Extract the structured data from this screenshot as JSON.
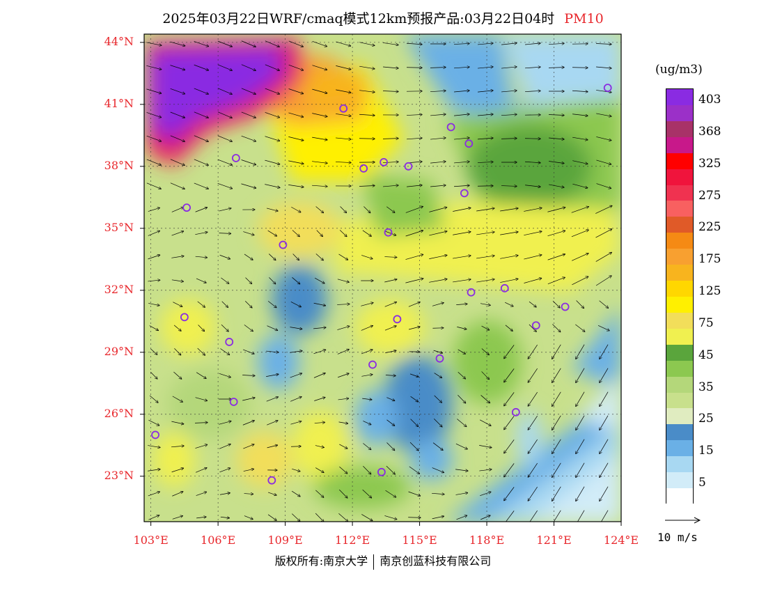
{
  "title": {
    "text": "2025年03月22日WRF/cmaq模式12km预报产品:03月22日04时",
    "pollutant": "PM10"
  },
  "map": {
    "lon_range": [
      102.7,
      124.0
    ],
    "lat_range": [
      20.8,
      44.4
    ],
    "lat_ticks": [
      {
        "value": 44,
        "label": "44°N"
      },
      {
        "value": 41,
        "label": "41°N"
      },
      {
        "value": 38,
        "label": "38°N"
      },
      {
        "value": 35,
        "label": "35°N"
      },
      {
        "value": 32,
        "label": "32°N"
      },
      {
        "value": 29,
        "label": "29°N"
      },
      {
        "value": 26,
        "label": "26°N"
      },
      {
        "value": 23,
        "label": "23°N"
      }
    ],
    "lon_ticks": [
      {
        "value": 103,
        "label": "103°E"
      },
      {
        "value": 106,
        "label": "106°E"
      },
      {
        "value": 109,
        "label": "109°E"
      },
      {
        "value": 112,
        "label": "112°E"
      },
      {
        "value": 115,
        "label": "115°E"
      },
      {
        "value": 118,
        "label": "118°E"
      },
      {
        "value": 121,
        "label": "121°E"
      },
      {
        "value": 124,
        "label": "124°E"
      }
    ],
    "city_marker_color": "#8a2be2",
    "cities": [
      {
        "lon": 103.2,
        "lat": 25.0
      },
      {
        "lon": 104.6,
        "lat": 36.0
      },
      {
        "lon": 104.5,
        "lat": 30.7
      },
      {
        "lon": 106.5,
        "lat": 29.5
      },
      {
        "lon": 106.7,
        "lat": 26.6
      },
      {
        "lon": 106.8,
        "lat": 38.4
      },
      {
        "lon": 108.4,
        "lat": 22.8
      },
      {
        "lon": 108.9,
        "lat": 34.2
      },
      {
        "lon": 111.6,
        "lat": 40.8
      },
      {
        "lon": 112.5,
        "lat": 37.9
      },
      {
        "lon": 113.4,
        "lat": 38.2
      },
      {
        "lon": 112.9,
        "lat": 28.4
      },
      {
        "lon": 113.6,
        "lat": 34.8
      },
      {
        "lon": 114.0,
        "lat": 30.6
      },
      {
        "lon": 113.3,
        "lat": 23.2
      },
      {
        "lon": 114.5,
        "lat": 38.0
      },
      {
        "lon": 115.9,
        "lat": 28.7
      },
      {
        "lon": 116.4,
        "lat": 39.9
      },
      {
        "lon": 117.2,
        "lat": 39.1
      },
      {
        "lon": 117.0,
        "lat": 36.7
      },
      {
        "lon": 117.3,
        "lat": 31.9
      },
      {
        "lon": 118.8,
        "lat": 32.1
      },
      {
        "lon": 120.2,
        "lat": 30.3
      },
      {
        "lon": 121.5,
        "lat": 31.2
      },
      {
        "lon": 119.3,
        "lat": 26.1
      },
      {
        "lon": 123.4,
        "lat": 41.8
      }
    ]
  },
  "legend": {
    "unit": "(ug/m3)",
    "bins": [
      {
        "color": "#8a2be2",
        "label": "403"
      },
      {
        "color": "#9b30c8",
        "label": ""
      },
      {
        "color": "#a83268",
        "label": "368"
      },
      {
        "color": "#c8188a",
        "label": ""
      },
      {
        "color": "#ff0000",
        "label": "325"
      },
      {
        "color": "#f0143c",
        "label": ""
      },
      {
        "color": "#f03250",
        "label": "275"
      },
      {
        "color": "#f86060",
        "label": ""
      },
      {
        "color": "#e05a28",
        "label": "225"
      },
      {
        "color": "#f58a14",
        "label": ""
      },
      {
        "color": "#f8a030",
        "label": "175"
      },
      {
        "color": "#f8b41e",
        "label": ""
      },
      {
        "color": "#ffd700",
        "label": "125"
      },
      {
        "color": "#fff000",
        "label": ""
      },
      {
        "color": "#f2de5a",
        "label": "75"
      },
      {
        "color": "#f0f050",
        "label": ""
      },
      {
        "color": "#5aa53c",
        "label": "45"
      },
      {
        "color": "#8cc850",
        "label": ""
      },
      {
        "color": "#b4d77a",
        "label": "35"
      },
      {
        "color": "#c8e08c",
        "label": ""
      },
      {
        "color": "#e0ecc0",
        "label": "25"
      },
      {
        "color": "#4a8cc8",
        "label": ""
      },
      {
        "color": "#6ab0e6",
        "label": "15"
      },
      {
        "color": "#a8d8f2",
        "label": ""
      },
      {
        "color": "#d2ecf8",
        "label": "5"
      },
      {
        "color": "#ffffff",
        "label": ""
      }
    ]
  },
  "wind_reference": {
    "label": "10 m/s"
  },
  "footer": {
    "left": "版权所有:南京大学",
    "right": "南京创蓝科技有限公司"
  }
}
